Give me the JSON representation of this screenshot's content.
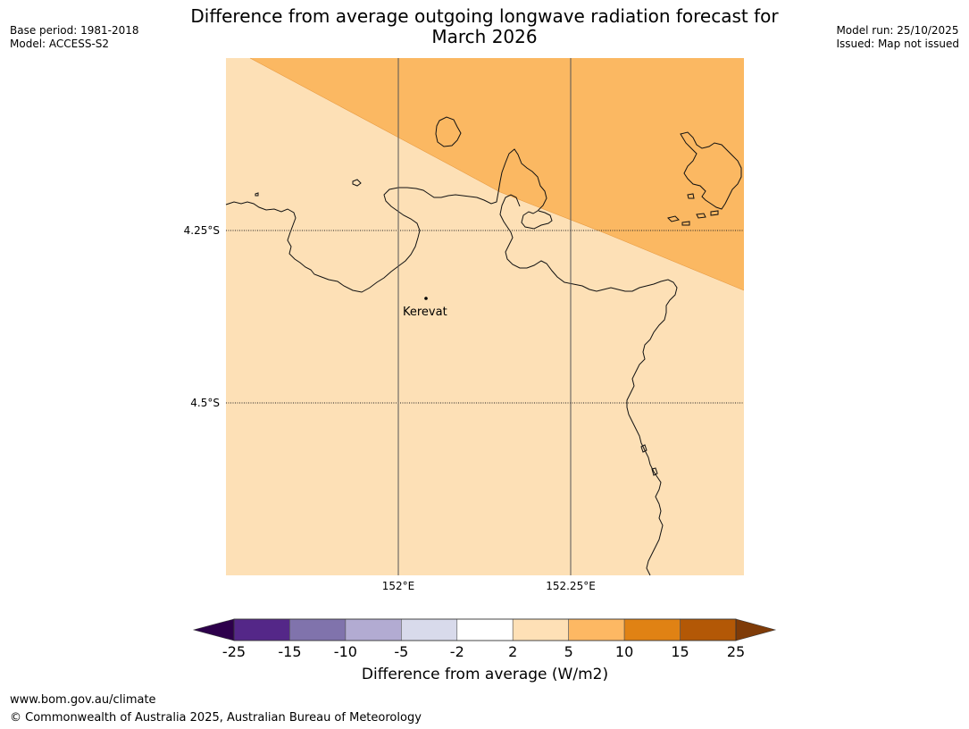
{
  "header": {
    "title_line1": "Difference from average outgoing longwave radiation forecast for",
    "title_line2": "March 2026",
    "base_period": "Base period: 1981-2018",
    "model": "Model: ACCESS-S2",
    "model_run": "Model run: 25/10/2025",
    "issued": "Issued: Map not issued"
  },
  "map": {
    "lat_labels": [
      "4.25°S",
      "4.5°S"
    ],
    "lon_labels": [
      "152°E",
      "152.25°E"
    ],
    "place_name": "Kerevat",
    "colors": {
      "background_category": "#fde0b6",
      "upper_category": "#fbb862",
      "gridline": "#555555",
      "coast": "#111111"
    },
    "categories_shown": [
      "2 to 5",
      "5 to 10"
    ]
  },
  "colorbar": {
    "title": "Difference from average (W/m2)",
    "tick_labels": [
      "-25",
      "-15",
      "-10",
      "-5",
      "-2",
      "2",
      "5",
      "10",
      "15",
      "25"
    ],
    "colors": [
      "#2d004b",
      "#542788",
      "#8073ac",
      "#b2abd2",
      "#d8daeb",
      "#ffffff",
      "#fee0b6",
      "#fdb863",
      "#e08214",
      "#b35806",
      "#7f3b08"
    ]
  },
  "footer": {
    "url": "www.bom.gov.au/climate",
    "copyright": "© Commonwealth of Australia 2025, Australian Bureau of Meteorology"
  }
}
